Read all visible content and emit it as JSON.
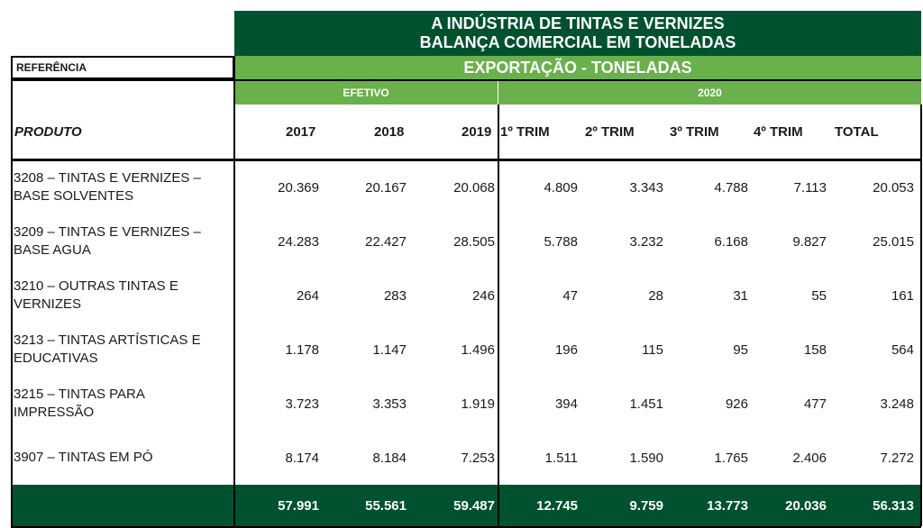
{
  "header": {
    "title_line1": "A INDÚSTRIA DE TINTAS E VERNIZES",
    "title_line2": "BALANÇA COMERCIAL  EM TONELADAS",
    "subtitle": "EXPORTAÇÃO - TONELADAS",
    "reference_label": "REFERÊNCIA",
    "efetivo_label": "EFETIVO",
    "year_2020_label": "2020"
  },
  "columns": {
    "product_label": "PRODUTO",
    "y2017": "2017",
    "y2018": "2018",
    "y2019": "2019",
    "t1": "1º TRIM",
    "t2": "2º TRIM",
    "t3": "3º TRIM",
    "t4": "4º TRIM",
    "total": "TOTAL"
  },
  "rows": [
    {
      "product": "3208 – TINTAS E VERNIZES – BASE SOLVENTES",
      "v": [
        "20.369",
        "20.167",
        "20.068",
        "4.809",
        "3.343",
        "4.788",
        "7.113",
        "20.053"
      ]
    },
    {
      "product": "3209 – TINTAS E VERNIZES – BASE AGUA",
      "v": [
        "24.283",
        "22.427",
        "28.505",
        "5.788",
        "3.232",
        "6.168",
        "9.827",
        "25.015"
      ]
    },
    {
      "product": "3210 – OUTRAS TINTAS E VERNIZES",
      "v": [
        "264",
        "283",
        "246",
        "47",
        "28",
        "31",
        "55",
        "161"
      ]
    },
    {
      "product": "3213 – TINTAS ARTÍSTICAS E EDUCATIVAS",
      "v": [
        "1.178",
        "1.147",
        "1.496",
        "196",
        "115",
        "95",
        "158",
        "564"
      ]
    },
    {
      "product": "3215 – TINTAS PARA IMPRESSÃO",
      "v": [
        "3.723",
        "3.353",
        "1.919",
        "394",
        "1.451",
        "926",
        "477",
        "3.248"
      ]
    },
    {
      "product": "3907 – TINTAS EM PÓ",
      "v": [
        "8.174",
        "8.184",
        "7.253",
        "1.511",
        "1.590",
        "1.765",
        "2.406",
        "7.272"
      ]
    }
  ],
  "totals": [
    "57.991",
    "55.561",
    "59.487",
    "12.745",
    "9.759",
    "13.773",
    "20.036",
    "56.313"
  ],
  "colors": {
    "dark_green": "#00522e",
    "light_green": "#6ab04c"
  }
}
